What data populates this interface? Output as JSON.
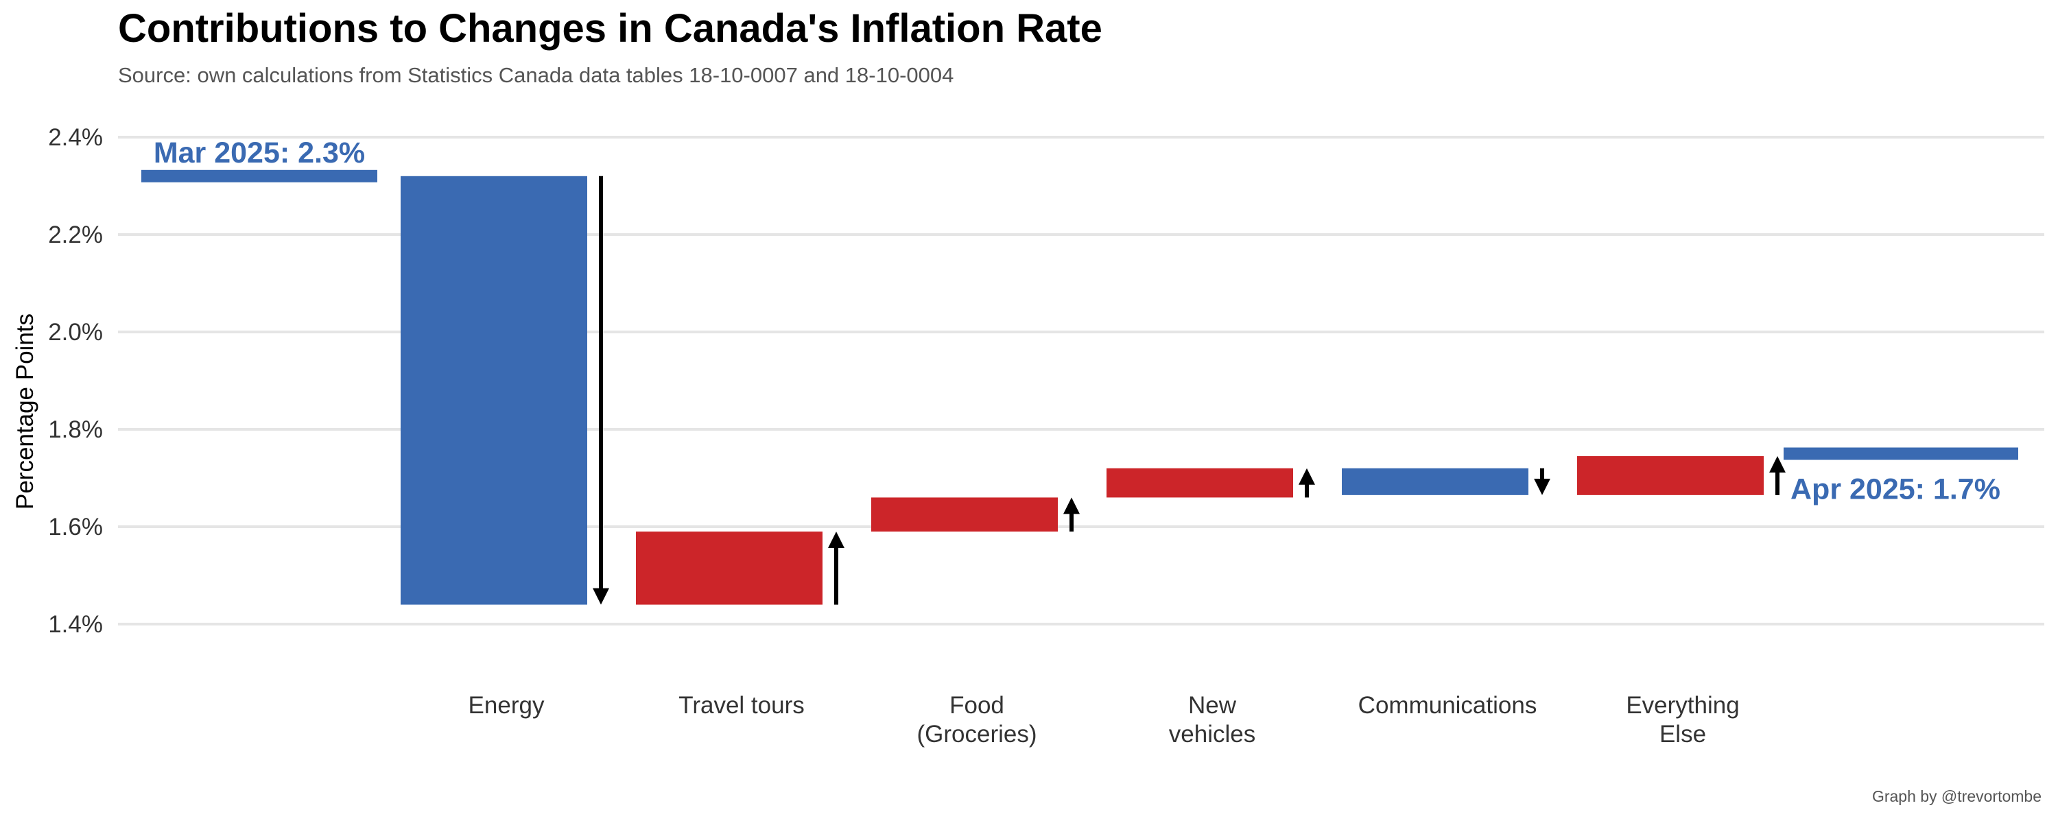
{
  "chart_data": {
    "type": "bar",
    "title": "Contributions to Changes in Canada's Inflation Rate",
    "subtitle": "Source: own calculations from Statistics Canada data tables 18-10-0007 and 18-10-0004",
    "ylabel": "Percentage Points",
    "caption": "Graph by @trevortombe",
    "ylim": [
      1.32,
      2.43
    ],
    "yticks": [
      1.4,
      1.6,
      1.8,
      2.0,
      2.2,
      2.4
    ],
    "ytick_labels": [
      "1.4%",
      "1.6%",
      "1.8%",
      "2.0%",
      "2.2%",
      "2.4%"
    ],
    "grid": true,
    "start": {
      "value": 2.32,
      "label": "Mar 2025: 2.3%"
    },
    "end": {
      "value": 1.75,
      "label": "Apr 2025: 1.7%"
    },
    "categories": [
      [
        "Energy"
      ],
      [
        "Travel tours"
      ],
      [
        "Food",
        "(Groceries)"
      ],
      [
        "New",
        "vehicles"
      ],
      [
        "Communications"
      ],
      [
        "Everything",
        "Else"
      ]
    ],
    "changes": [
      -0.88,
      0.15,
      0.07,
      0.06,
      -0.055,
      0.08
    ],
    "colors": {
      "decrease": "#3A6AB2",
      "increase": "#CC2529",
      "endpoint": "#3A6AB2",
      "grid": "#E5E5E5",
      "arrow": "#000000"
    }
  }
}
